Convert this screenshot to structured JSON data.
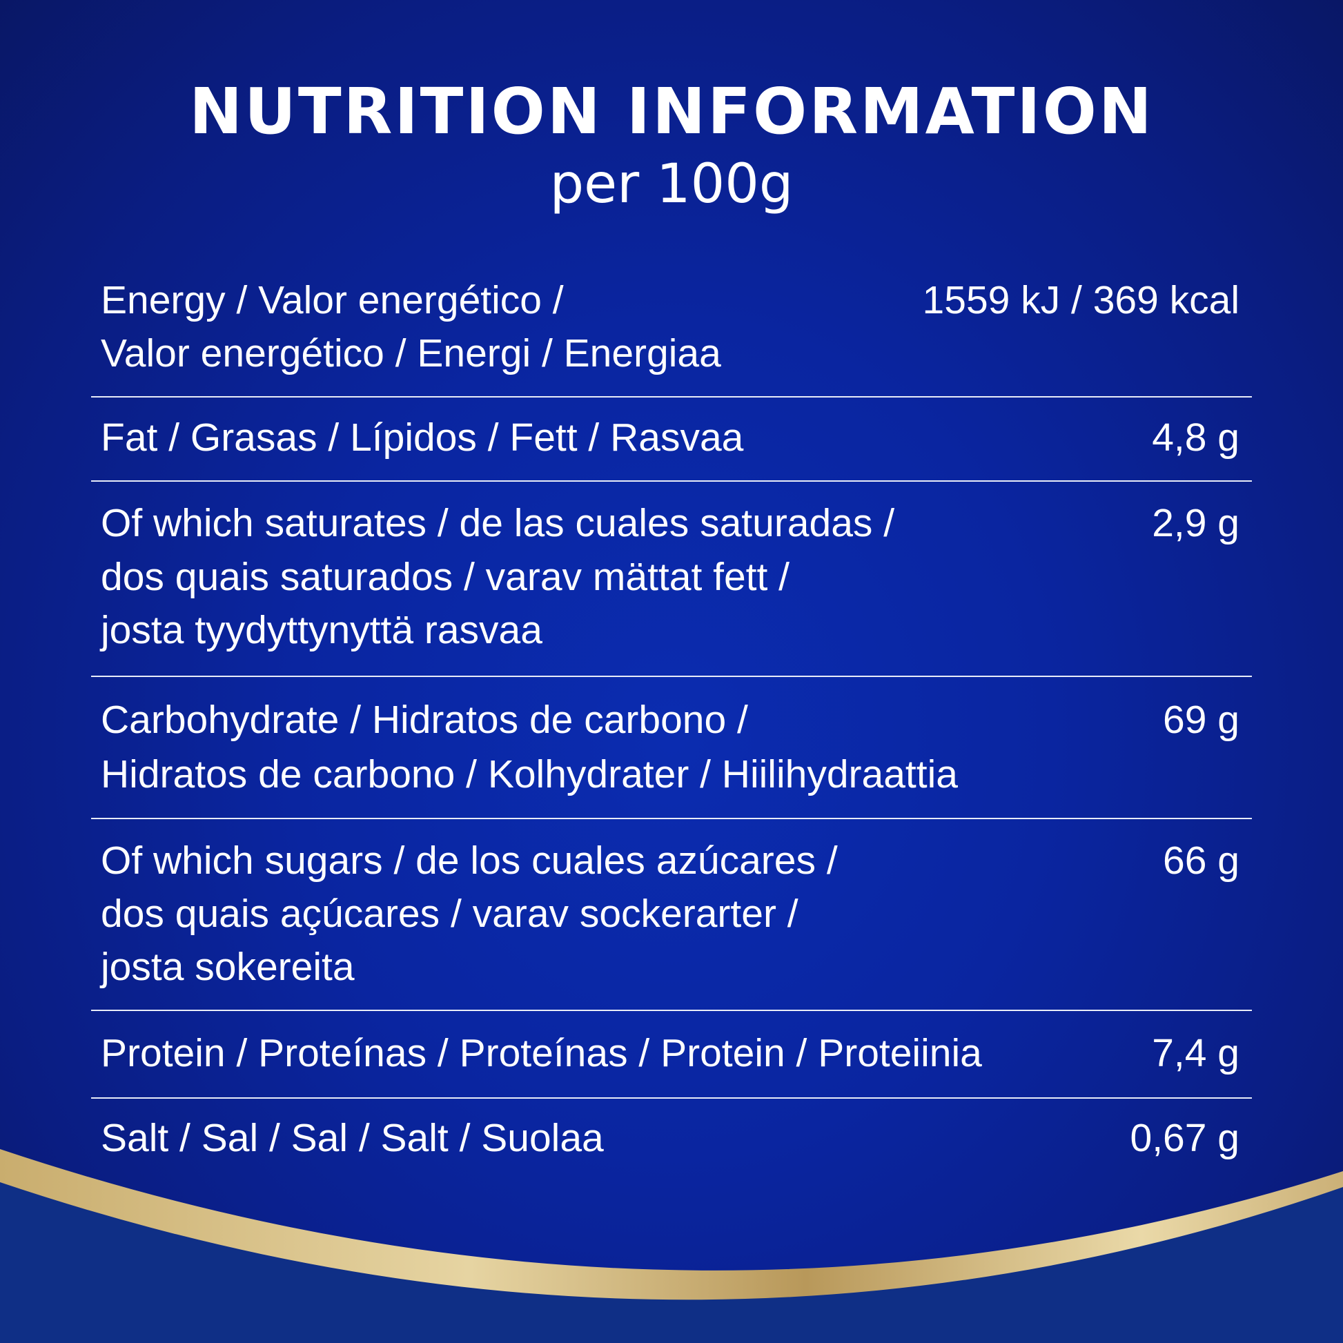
{
  "title": "NUTRITION INFORMATION",
  "subtitle": "per 100g",
  "colors": {
    "background": "#0a25a0",
    "band": "#d9c48e",
    "lower": "#0f3080"
  },
  "rows": [
    {
      "label": [
        "Energy / Valor energético /",
        "Valor energético / Energi / Energiaa"
      ],
      "value": "1559 kJ / 369 kcal"
    },
    {
      "label": [
        "Fat / Grasas / Lípidos / Fett / Rasvaa"
      ],
      "value": "4,8 g"
    },
    {
      "label": [
        "Of which saturates / de las cuales saturadas /",
        "dos quais saturados / varav mättat fett /",
        "josta tyydyttynyttä rasvaa"
      ],
      "value": "2,9 g"
    },
    {
      "label": [
        "Carbohydrate / Hidratos de carbono /",
        "Hidratos de carbono / Kolhydrater / Hiilihydraattia"
      ],
      "value": "69 g"
    },
    {
      "label": [
        "Of which sugars / de los cuales azúcares /",
        "dos quais açúcares / varav sockerarter /",
        "josta sokereita"
      ],
      "value": "66 g"
    },
    {
      "label": [
        "Protein / Proteínas / Proteínas / Protein / Proteiinia"
      ],
      "value": "7,4 g"
    },
    {
      "label": [
        "Salt / Sal / Sal / Salt / Suolaa"
      ],
      "value": "0,67 g"
    }
  ]
}
